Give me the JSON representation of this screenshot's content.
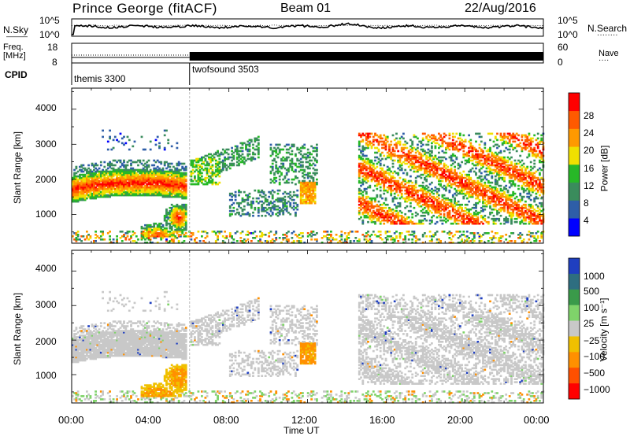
{
  "header": {
    "station": "Prince George (fitACF)",
    "beam": "Beam 01",
    "date": "22/Aug/2016"
  },
  "noise_panel": {
    "left_label": "N.Sky",
    "left_ticks": [
      "10^5",
      "10^0"
    ],
    "right_label": "N.Search",
    "right_ticks": [
      "10^5",
      "10^0"
    ],
    "legend_sky": "———",
    "legend_search": "········"
  },
  "freq_panel": {
    "left_label_line1": "Freq.",
    "left_label_line2": "[MHz]",
    "left_ticks": [
      "18",
      "8"
    ],
    "right_label": "Nave",
    "right_ticks": [
      "60",
      "0"
    ],
    "legend_nave": "····"
  },
  "cpid_panel": {
    "label": "CPID",
    "modes": [
      {
        "name": "themis 3300",
        "start_hour": 0
      },
      {
        "name": "twofsound 3503",
        "start_hour": 6
      }
    ]
  },
  "power_panel": {
    "ylabel": "Slant Range [km]",
    "yticks": [
      "4000",
      "3000",
      "2000",
      "1000"
    ],
    "colorbar_label": "Power [dB]",
    "colorbar_ticks": [
      "28",
      "24",
      "20",
      "16",
      "12",
      "8",
      "4"
    ],
    "colors": [
      "#0000ff",
      "#2e5ea8",
      "#3a8c5c",
      "#27b827",
      "#f0e000",
      "#ff9900",
      "#ff5a00",
      "#ff0000"
    ]
  },
  "velocity_panel": {
    "ylabel": "Slant Range [km]",
    "yticks": [
      "4000",
      "3000",
      "2000",
      "1000"
    ],
    "colorbar_label": "Velocity [m s⁻¹]",
    "colorbar_ticks": [
      "1000",
      "500",
      "100",
      "25",
      "−25",
      "−100",
      "−500",
      "−1000"
    ],
    "colors": [
      "#1f3fc0",
      "#2e6e80",
      "#3a9a4a",
      "#7fd36a",
      "#c8c8c8",
      "#f0c000",
      "#ff9000",
      "#ff5000",
      "#ff0000"
    ]
  },
  "x_axis": {
    "label": "Time UT",
    "ticks": [
      "00:00",
      "04:00",
      "08:00",
      "12:00",
      "16:00",
      "20:00",
      "00:00"
    ]
  },
  "chart_data": [
    {
      "type": "line",
      "title": "N.Sky / N.Search",
      "x_range_hours": [
        0,
        24
      ],
      "y_scale": "log",
      "ylim": [
        1,
        100000
      ]
    },
    {
      "type": "line",
      "title": "Freq. / Nave",
      "x_range_hours": [
        0,
        24
      ],
      "ylim_freq_mhz": [
        8,
        18
      ],
      "ylim_nave": [
        0,
        60
      ]
    },
    {
      "type": "heatmap",
      "title": "Power",
      "x_range_hours": [
        0,
        24
      ],
      "ylim_km": [
        180,
        4600
      ],
      "value_unit": "dB",
      "value_range": [
        0,
        30
      ],
      "echo_regions": [
        {
          "t": [
            0.0,
            5.8
          ],
          "km": [
            1300,
            2100
          ],
          "power_db": 28
        },
        {
          "t": [
            0.0,
            5.8
          ],
          "km": [
            2100,
            2500
          ],
          "power_db": 12
        },
        {
          "t": [
            1.5,
            5.5
          ],
          "km": [
            2800,
            3500
          ],
          "power_db": 8
        },
        {
          "t": [
            3.5,
            5.8
          ],
          "km": [
            400,
            1300
          ],
          "power_db": 26
        },
        {
          "t": [
            6.5,
            9.0
          ],
          "km": [
            2300,
            3000
          ],
          "power_db": 10
        },
        {
          "t": [
            8.0,
            13.0
          ],
          "km": [
            900,
            2800
          ],
          "power_db": 10
        },
        {
          "t": [
            11.5,
            12.5
          ],
          "km": [
            1300,
            1900
          ],
          "power_db": 20
        },
        {
          "t": [
            14.5,
            24.0
          ],
          "km": [
            700,
            3300
          ],
          "power_db": 18
        },
        {
          "t": [
            0.0,
            24.0
          ],
          "km": [
            180,
            500
          ],
          "power_db": 8
        }
      ]
    },
    {
      "type": "heatmap",
      "title": "Velocity",
      "x_range_hours": [
        0,
        24
      ],
      "ylim_km": [
        180,
        4600
      ],
      "value_unit": "m s⁻¹",
      "value_range": [
        -1000,
        1000
      ],
      "echo_regions": [
        {
          "t": [
            0.0,
            5.8
          ],
          "km": [
            1300,
            2500
          ],
          "velocity": 0
        },
        {
          "t": [
            3.5,
            5.8
          ],
          "km": [
            700,
            1300
          ],
          "velocity": -500
        },
        {
          "t": [
            11.5,
            12.5
          ],
          "km": [
            1300,
            1900
          ],
          "velocity": -500
        },
        {
          "t": [
            6.5,
            13.0
          ],
          "km": [
            900,
            3000
          ],
          "velocity": 0
        },
        {
          "t": [
            14.5,
            24.0
          ],
          "km": [
            700,
            3300
          ],
          "velocity": 0
        }
      ]
    }
  ]
}
